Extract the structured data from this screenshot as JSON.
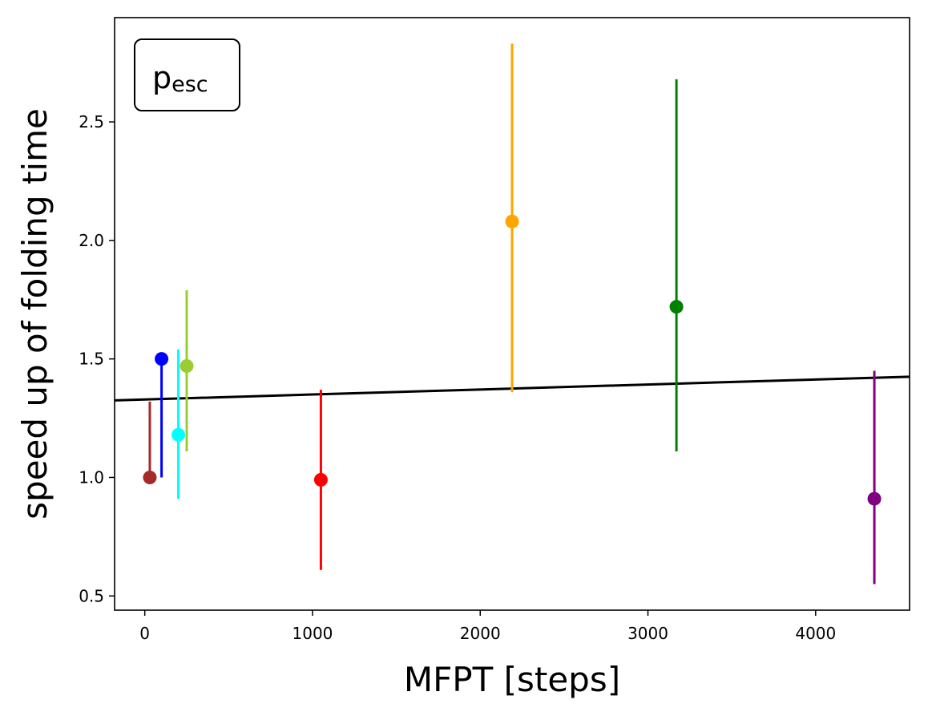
{
  "chart_data": {
    "type": "scatter",
    "xlabel": "MFPT [steps]",
    "ylabel": "speed up of folding time",
    "annotation": {
      "main": "p",
      "subscript": "esc"
    },
    "xlim": [
      -180,
      4560
    ],
    "ylim": [
      0.44,
      2.94
    ],
    "xticks": [
      0,
      1000,
      2000,
      3000,
      4000
    ],
    "yticks": [
      0.5,
      1.0,
      1.5,
      2.0,
      2.5
    ],
    "ytick_labels": [
      "0.5",
      "1.0",
      "1.5",
      "2.0",
      "2.5"
    ],
    "grid": false,
    "points": [
      {
        "x": 30,
        "y": 1.0,
        "y_low": 1.0,
        "y_high": 1.32,
        "color": "#a52a2a"
      },
      {
        "x": 100,
        "y": 1.5,
        "y_low": 1.0,
        "y_high": 1.5,
        "color": "#0000ff"
      },
      {
        "x": 200,
        "y": 1.18,
        "y_low": 0.91,
        "y_high": 1.54,
        "color": "#00ffff"
      },
      {
        "x": 250,
        "y": 1.47,
        "y_low": 1.11,
        "y_high": 1.79,
        "color": "#9acd32"
      },
      {
        "x": 1050,
        "y": 0.99,
        "y_low": 0.61,
        "y_high": 1.37,
        "color": "#ff0000"
      },
      {
        "x": 2190,
        "y": 2.08,
        "y_low": 1.36,
        "y_high": 2.83,
        "color": "#ffa500"
      },
      {
        "x": 3170,
        "y": 1.72,
        "y_low": 1.11,
        "y_high": 2.68,
        "color": "#008000"
      },
      {
        "x": 4350,
        "y": 0.91,
        "y_low": 0.55,
        "y_high": 1.45,
        "color": "#800080"
      }
    ],
    "fit_line": {
      "x": [
        -180,
        4560
      ],
      "y": [
        1.325,
        1.425
      ],
      "color": "#000000"
    }
  }
}
